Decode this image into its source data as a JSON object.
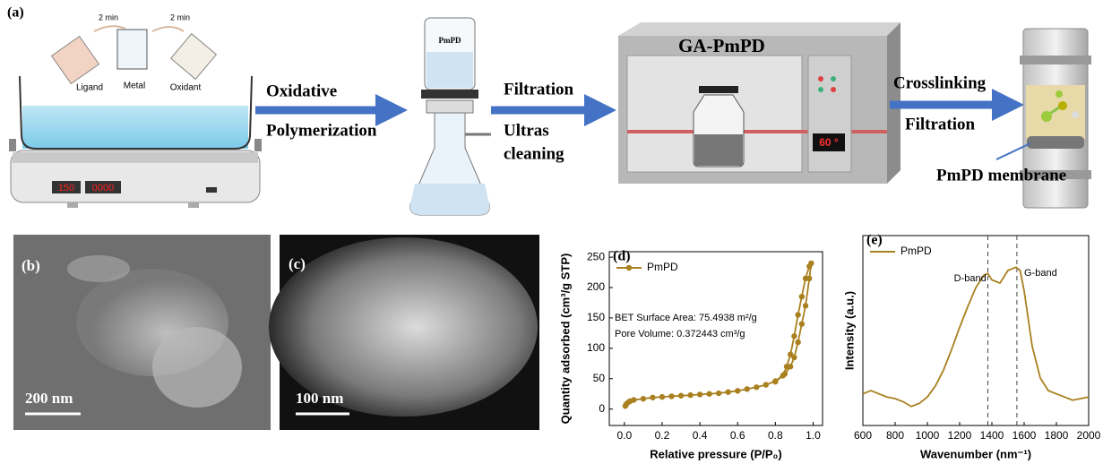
{
  "panel_a": {
    "label": "(a)",
    "step_times": [
      "2 min",
      "2 min"
    ],
    "reagents": [
      "Ligand",
      "Metal",
      "Oxidant"
    ],
    "stirrer_display": [
      "150",
      "0000"
    ],
    "step1": [
      "Oxidative",
      "Polymerization"
    ],
    "filter_label": "PmPD",
    "step2": [
      "Filtration",
      "Ultras",
      "cleaning"
    ],
    "oven_label": "GA-PmPD",
    "oven_display": "60 °",
    "step3": [
      "Crosslinking",
      "Filtration"
    ],
    "membrane_label": "PmPD membrane"
  },
  "panel_b": {
    "label": "(b)",
    "scale_bar": "200 nm"
  },
  "panel_c": {
    "label": "(c)",
    "scale_bar": "100 nm"
  },
  "chart_data": [
    {
      "type": "line",
      "panel_label": "(d)",
      "x_label": "Relative pressure (P/P₀)",
      "y_label": "Quantity adsorbed (cm³/g STP)",
      "annotations": [
        "BET Surface Area: 75.4938 m²/g",
        "Pore Volume: 0.372443 cm³/g"
      ],
      "markers": true,
      "legend": "upper left",
      "x": [
        0.005,
        0.01,
        0.02,
        0.03,
        0.05,
        0.1,
        0.15,
        0.2,
        0.25,
        0.3,
        0.35,
        0.4,
        0.45,
        0.5,
        0.55,
        0.6,
        0.65,
        0.7,
        0.75,
        0.8,
        0.85,
        0.88,
        0.9,
        0.92,
        0.94,
        0.96,
        0.98,
        0.99,
        0.98,
        0.96,
        0.94,
        0.92,
        0.9,
        0.88,
        0.86,
        0.84,
        0.8
      ],
      "series": [
        {
          "name": "PmPD",
          "color": "#a9801f",
          "values": [
            5,
            8,
            11,
            13,
            15,
            17,
            19,
            20,
            21,
            22,
            23,
            24,
            25,
            26,
            28,
            30,
            33,
            36,
            40,
            46,
            58,
            70,
            85,
            110,
            140,
            170,
            215,
            240,
            235,
            215,
            185,
            155,
            120,
            90,
            70,
            55,
            45
          ]
        }
      ],
      "xlim": [
        -0.08,
        1.05
      ],
      "ylim": [
        -27,
        259
      ],
      "xticks": [
        {
          "value": 0,
          "label": "0.0"
        },
        {
          "value": 0.2,
          "label": "0.2"
        },
        {
          "value": 0.4,
          "label": "0.4"
        },
        {
          "value": 0.6,
          "label": "0.6"
        },
        {
          "value": 0.8,
          "label": "0.8"
        },
        {
          "value": 1,
          "label": "1.0"
        }
      ],
      "yticks": [
        0,
        50,
        100,
        150,
        200,
        250
      ]
    },
    {
      "type": "line",
      "panel_label": "(e)",
      "x_label": "Wavenumber (nm⁻¹)",
      "y_label": "Intensity (a.u.)",
      "annotations": [
        "D-band",
        "G-band"
      ],
      "reference_lines": [
        1375,
        1555
      ],
      "markers": false,
      "legend": "upper left",
      "x": [
        600,
        650,
        700,
        750,
        800,
        850,
        900,
        950,
        1000,
        1050,
        1100,
        1150,
        1200,
        1250,
        1300,
        1350,
        1375,
        1400,
        1450,
        1500,
        1550,
        1575,
        1600,
        1650,
        1700,
        1750,
        1800,
        1850,
        1900,
        1950,
        2000
      ],
      "series": [
        {
          "name": "PmPD",
          "color": "#a9801f",
          "values": [
            20,
            22,
            20,
            18,
            17,
            15,
            12,
            14,
            18,
            25,
            35,
            48,
            62,
            75,
            87,
            95,
            96,
            92,
            90,
            98,
            100,
            98,
            85,
            50,
            30,
            22,
            20,
            18,
            16,
            17,
            18
          ]
        }
      ],
      "xlim": [
        600,
        2000
      ],
      "ylim": [
        0,
        120
      ],
      "xticks": [
        600,
        800,
        1000,
        1200,
        1400,
        1600,
        1800,
        2000
      ]
    }
  ]
}
